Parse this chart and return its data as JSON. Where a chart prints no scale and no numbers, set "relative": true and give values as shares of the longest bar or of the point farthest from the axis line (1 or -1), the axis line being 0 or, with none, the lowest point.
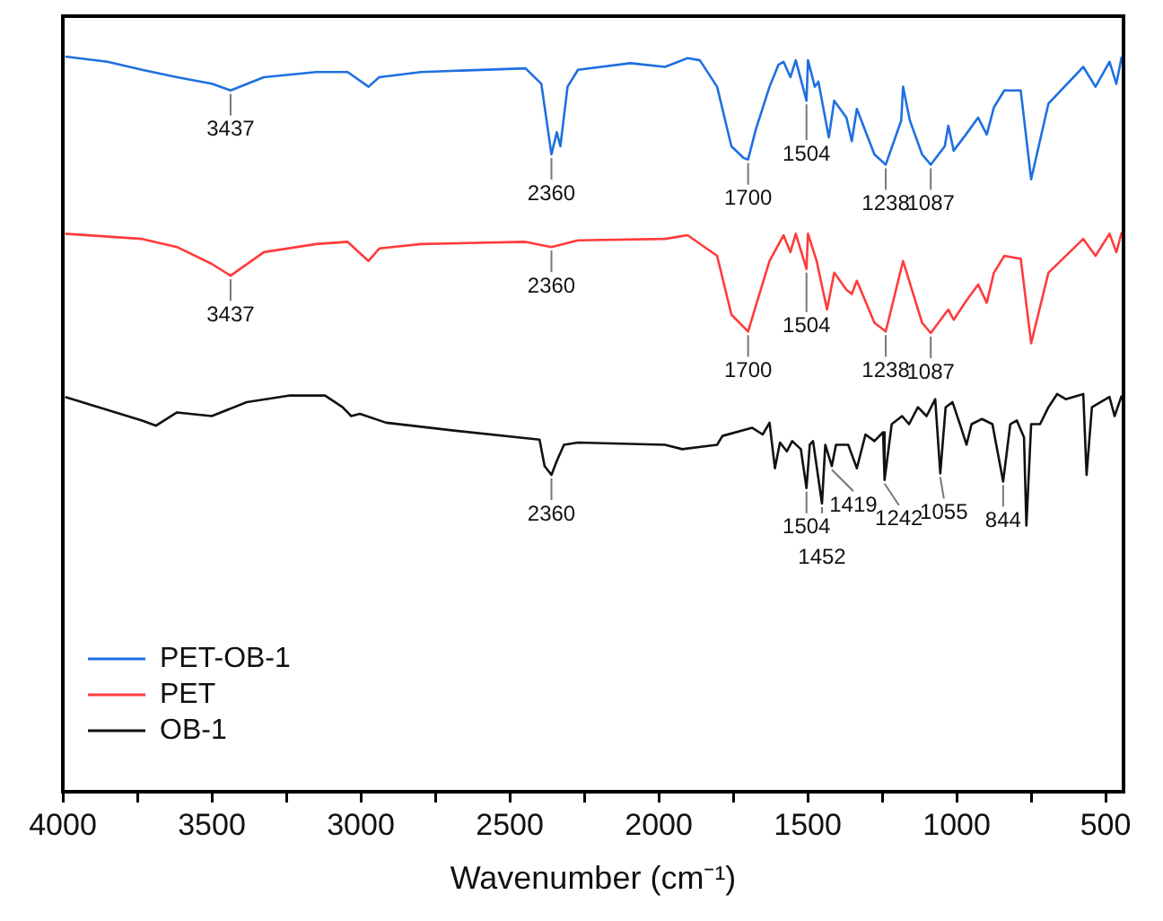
{
  "chart_data": {
    "type": "line",
    "xlabel": "Wavenumber (cm⁻¹)",
    "relative": true,
    "xlim": [
      4000,
      440
    ],
    "xticks": [
      4000,
      {
        "value": 3750,
        "label": null
      },
      3500,
      {
        "value": 3250,
        "label": null
      },
      3000,
      {
        "value": 2750,
        "label": null
      },
      2500,
      {
        "value": 2250,
        "label": null
      },
      2000,
      {
        "value": 1750,
        "label": null
      },
      1500,
      {
        "value": 1250,
        "label": null
      },
      1000,
      {
        "value": 750,
        "label": null
      },
      500
    ],
    "grid": false,
    "legend": "bottom left",
    "marker": "none",
    "line_style": "solid",
    "series": [
      {
        "name": "PET-OB-1",
        "color": "#1f6fe0",
        "x": [
          3992,
          3851,
          3734,
          3617,
          3500,
          3437,
          3325,
          3150,
          3044,
          2974,
          2938,
          2798,
          2447,
          2394,
          2360,
          2342,
          2330,
          2306,
          2271,
          2095,
          1979,
          1903,
          1862,
          1804,
          1756,
          1715,
          1700,
          1674,
          1628,
          1598,
          1581,
          1558,
          1540,
          1504,
          1499,
          1476,
          1464,
          1429,
          1411,
          1370,
          1352,
          1335,
          1276,
          1238,
          1186,
          1180,
          1157,
          1116,
          1087,
          1040,
          1028,
          1010,
          969,
          928,
          899,
          875,
          840,
          785,
          750,
          692,
          575,
          534,
          487,
          464,
          446
        ],
        "values": [
          1.0,
          0.993,
          0.982,
          0.972,
          0.963,
          0.954,
          0.972,
          0.979,
          0.979,
          0.959,
          0.972,
          0.979,
          0.984,
          0.963,
          0.867,
          0.897,
          0.878,
          0.959,
          0.982,
          0.991,
          0.986,
          0.998,
          0.995,
          0.959,
          0.878,
          0.862,
          0.86,
          0.901,
          0.959,
          0.989,
          0.993,
          0.972,
          0.995,
          0.94,
          0.995,
          0.959,
          0.966,
          0.89,
          0.94,
          0.917,
          0.885,
          0.929,
          0.867,
          0.853,
          0.913,
          0.959,
          0.913,
          0.867,
          0.853,
          0.878,
          0.906,
          0.872,
          0.894,
          0.917,
          0.894,
          0.931,
          0.954,
          0.954,
          0.833,
          0.936,
          0.986,
          0.959,
          0.993,
          0.963,
          1.0
        ]
      },
      {
        "name": "PET",
        "color": "#ff3b3b",
        "x": [
          3992,
          3734,
          3617,
          3500,
          3437,
          3325,
          3150,
          3044,
          2974,
          2938,
          2798,
          2447,
          2360,
          2271,
          1979,
          1903,
          1804,
          1756,
          1700,
          1674,
          1628,
          1581,
          1558,
          1540,
          1504,
          1499,
          1470,
          1435,
          1411,
          1370,
          1352,
          1335,
          1276,
          1238,
          1180,
          1116,
          1087,
          1028,
          1010,
          969,
          928,
          899,
          875,
          840,
          785,
          750,
          692,
          575,
          534,
          487,
          464,
          446
        ],
        "values": [
          0.759,
          0.752,
          0.741,
          0.718,
          0.702,
          0.734,
          0.745,
          0.748,
          0.722,
          0.739,
          0.745,
          0.748,
          0.741,
          0.75,
          0.752,
          0.757,
          0.729,
          0.649,
          0.626,
          0.661,
          0.722,
          0.757,
          0.734,
          0.759,
          0.711,
          0.759,
          0.722,
          0.656,
          0.706,
          0.683,
          0.677,
          0.695,
          0.638,
          0.626,
          0.722,
          0.638,
          0.624,
          0.656,
          0.642,
          0.667,
          0.69,
          0.665,
          0.706,
          0.729,
          0.725,
          0.61,
          0.706,
          0.752,
          0.729,
          0.759,
          0.734,
          0.761
        ]
      },
      {
        "name": "OB-1",
        "color": "#111111",
        "x": [
          3992,
          3734,
          3687,
          3617,
          3500,
          3383,
          3237,
          3120,
          3061,
          3032,
          3003,
          2915,
          2681,
          2400,
          2383,
          2360,
          2342,
          2318,
          2271,
          1979,
          1921,
          1804,
          1786,
          1686,
          1651,
          1628,
          1610,
          1593,
          1570,
          1552,
          1523,
          1504,
          1493,
          1482,
          1452,
          1441,
          1419,
          1405,
          1364,
          1335,
          1306,
          1276,
          1247,
          1242,
          1218,
          1183,
          1160,
          1130,
          1101,
          1072,
          1055,
          1037,
          1014,
          985,
          967,
          950,
          915,
          880,
          844,
          820,
          798,
          774,
          766,
          750,
          720,
          692,
          663,
          634,
          575,
          564,
          546,
          487,
          470,
          446
        ],
        "values": [
          0.537,
          0.505,
          0.498,
          0.516,
          0.511,
          0.53,
          0.539,
          0.539,
          0.523,
          0.511,
          0.514,
          0.502,
          0.491,
          0.479,
          0.443,
          0.431,
          0.45,
          0.472,
          0.475,
          0.472,
          0.466,
          0.472,
          0.484,
          0.495,
          0.486,
          0.502,
          0.44,
          0.475,
          0.463,
          0.477,
          0.466,
          0.413,
          0.472,
          0.477,
          0.392,
          0.472,
          0.443,
          0.472,
          0.472,
          0.44,
          0.486,
          0.477,
          0.489,
          0.424,
          0.5,
          0.511,
          0.5,
          0.523,
          0.511,
          0.534,
          0.433,
          0.523,
          0.53,
          0.495,
          0.472,
          0.5,
          0.507,
          0.5,
          0.422,
          0.5,
          0.505,
          0.482,
          0.362,
          0.5,
          0.5,
          0.523,
          0.541,
          0.534,
          0.541,
          0.431,
          0.523,
          0.537,
          0.511,
          0.539
        ]
      }
    ],
    "annotations": [
      {
        "text": "3437",
        "x": 3437,
        "y": 0.954
      },
      {
        "text": "2360",
        "x": 2360,
        "y": 0.867
      },
      {
        "text": "1700",
        "x": 1700,
        "y": 0.86
      },
      {
        "text": "1504",
        "x": 1504,
        "y": 0.94
      },
      {
        "text": "1238",
        "x": 1238,
        "y": 0.853
      },
      {
        "text": "1087",
        "x": 1087,
        "y": 0.853
      },
      {
        "text": "3437",
        "x": 3437,
        "y": 0.702
      },
      {
        "text": "2360",
        "x": 2360,
        "y": 0.741
      },
      {
        "text": "1700",
        "x": 1700,
        "y": 0.626
      },
      {
        "text": "1504",
        "x": 1504,
        "y": 0.711
      },
      {
        "text": "1238",
        "x": 1238,
        "y": 0.626
      },
      {
        "text": "1087",
        "x": 1087,
        "y": 0.624
      },
      {
        "text": "2360",
        "x": 2360,
        "y": 0.431
      },
      {
        "text": "1504",
        "x": 1504,
        "y": 0.413
      },
      {
        "text": "1452",
        "x": 1452,
        "y": 0.392
      },
      {
        "text": "1419",
        "x": 1419,
        "y": 0.443
      },
      {
        "text": "1242",
        "x": 1242,
        "y": 0.424
      },
      {
        "text": "1055",
        "x": 1055,
        "y": 0.433
      },
      {
        "text": "844",
        "x": 844,
        "y": 0.422
      }
    ]
  }
}
